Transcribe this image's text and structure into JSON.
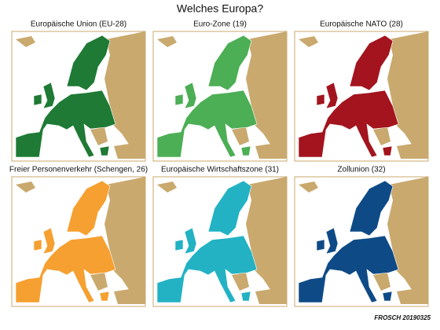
{
  "title": "Welches Europa?",
  "panels": [
    {
      "title": "Europäische Union (EU-28)",
      "color": "#1e7a34"
    },
    {
      "title": "Euro-Zone (19)",
      "color": "#4cae55"
    },
    {
      "title": "Europäische NATO (28)",
      "color": "#a3141e"
    },
    {
      "title": "Freier Personenverkehr (Schengen, 26)",
      "color": "#f5a030"
    },
    {
      "title": "Europäische Wirtschaftszone (31)",
      "color": "#22b2c4"
    },
    {
      "title": "Zollunion (32)",
      "color": "#0e4a86"
    }
  ],
  "signature": "FROSCH 20190325"
}
